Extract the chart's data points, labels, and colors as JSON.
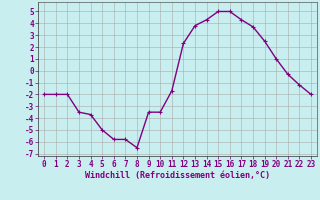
{
  "x": [
    0,
    1,
    2,
    3,
    4,
    5,
    6,
    7,
    8,
    9,
    10,
    11,
    12,
    13,
    14,
    15,
    16,
    17,
    18,
    19,
    20,
    21,
    22,
    23
  ],
  "y": [
    -2.0,
    -2.0,
    -2.0,
    -3.5,
    -3.7,
    -5.0,
    -5.8,
    -5.8,
    -6.5,
    -3.5,
    -3.5,
    -1.7,
    2.3,
    3.8,
    4.3,
    5.0,
    5.0,
    4.3,
    3.7,
    2.5,
    1.0,
    -0.3,
    -1.2,
    -2.0
  ],
  "line_color": "#800080",
  "marker": "+",
  "marker_size": 3,
  "bg_color": "#c9eef0",
  "grid_color": "#aaaaaa",
  "xlabel": "Windchill (Refroidissement éolien,°C)",
  "xlim": [
    -0.5,
    23.5
  ],
  "ylim": [
    -7.2,
    5.8
  ],
  "yticks": [
    -7,
    -6,
    -5,
    -4,
    -3,
    -2,
    -1,
    0,
    1,
    2,
    3,
    4,
    5
  ],
  "xticks": [
    0,
    1,
    2,
    3,
    4,
    5,
    6,
    7,
    8,
    9,
    10,
    11,
    12,
    13,
    14,
    15,
    16,
    17,
    18,
    19,
    20,
    21,
    22,
    23
  ],
  "label_fontsize": 6,
  "tick_fontsize": 5.5,
  "line_width": 1.0
}
